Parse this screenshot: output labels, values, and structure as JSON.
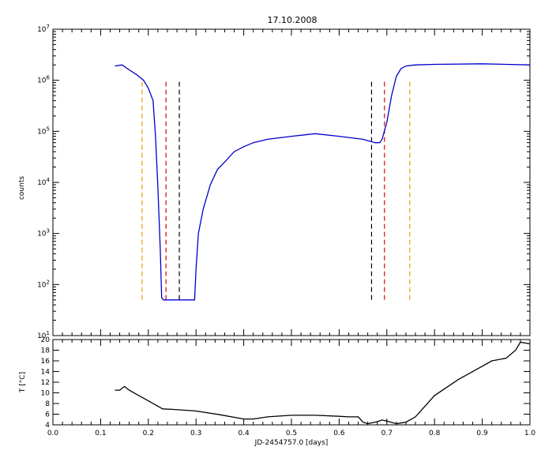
{
  "figure": {
    "title": "17.10.2008"
  },
  "chart_data": [
    {
      "type": "line",
      "title": "17.10.2008",
      "xlabel": "",
      "ylabel": "counts",
      "yscale": "log",
      "xlim": [
        0.0,
        1.0
      ],
      "ylim": [
        10,
        10000000
      ],
      "grid": false,
      "y_ticks": [
        {
          "value": 10,
          "base": "10",
          "exp": "1"
        },
        {
          "value": 100,
          "base": "10",
          "exp": "2"
        },
        {
          "value": 1000,
          "base": "10",
          "exp": "3"
        },
        {
          "value": 10000,
          "base": "10",
          "exp": "4"
        },
        {
          "value": 100000,
          "base": "10",
          "exp": "5"
        },
        {
          "value": 1000000,
          "base": "10",
          "exp": "6"
        },
        {
          "value": 10000000,
          "base": "10",
          "exp": "7"
        }
      ],
      "series": [
        {
          "color": "#0000cc",
          "x": [
            0.13,
            0.145,
            0.16,
            0.175,
            0.19,
            0.2,
            0.21,
            0.215,
            0.22,
            0.225,
            0.228,
            0.232,
            0.24,
            0.26,
            0.28,
            0.297,
            0.3,
            0.305,
            0.315,
            0.33,
            0.345,
            0.36,
            0.38,
            0.4,
            0.42,
            0.45,
            0.5,
            0.55,
            0.6,
            0.65,
            0.675,
            0.68,
            0.685,
            0.69,
            0.7,
            0.71,
            0.72,
            0.73,
            0.74,
            0.76,
            0.8,
            0.9,
            1.0
          ],
          "y": [
            1900000,
            2000000,
            1600000,
            1300000,
            1000000,
            700000,
            400000,
            80000,
            8000,
            500,
            55,
            50,
            50,
            50,
            50,
            50,
            200,
            1000,
            3000,
            9000,
            18000,
            25000,
            40000,
            50000,
            60000,
            70000,
            80000,
            90000,
            80000,
            70000,
            60000,
            60000,
            60000,
            70000,
            150000,
            500000,
            1200000,
            1700000,
            1900000,
            2000000,
            2050000,
            2100000,
            2000000
          ]
        }
      ],
      "vertical_lines": [
        {
          "x": 0.187,
          "color": "#e0a000"
        },
        {
          "x": 0.237,
          "color": "#dd0000"
        },
        {
          "x": 0.265,
          "color": "#000000"
        },
        {
          "x": 0.668,
          "color": "#000000"
        },
        {
          "x": 0.695,
          "color": "#dd0000"
        },
        {
          "x": 0.748,
          "color": "#e0a000"
        }
      ]
    },
    {
      "type": "line",
      "title": "",
      "xlabel": "JD-2454757.0 [days]",
      "ylabel": "T [°C]",
      "xlim": [
        0.0,
        1.0
      ],
      "ylim": [
        4,
        20
      ],
      "grid": false,
      "x_ticks": [
        "0.0",
        "0.1",
        "0.2",
        "0.3",
        "0.4",
        "0.5",
        "0.6",
        "0.7",
        "0.8",
        "0.9",
        "1.0"
      ],
      "y_ticks": [
        "4",
        "6",
        "8",
        "10",
        "12",
        "14",
        "16",
        "18",
        "20"
      ],
      "series": [
        {
          "color": "#000000",
          "x": [
            0.13,
            0.14,
            0.15,
            0.16,
            0.18,
            0.2,
            0.22,
            0.23,
            0.25,
            0.3,
            0.35,
            0.4,
            0.42,
            0.45,
            0.5,
            0.55,
            0.6,
            0.62,
            0.64,
            0.65,
            0.66,
            0.68,
            0.69,
            0.7,
            0.72,
            0.74,
            0.76,
            0.78,
            0.8,
            0.85,
            0.9,
            0.92,
            0.95,
            0.97,
            0.98,
            1.0
          ],
          "y": [
            10.5,
            10.5,
            11.2,
            10.5,
            9.5,
            8.5,
            7.5,
            7.0,
            6.9,
            6.6,
            5.9,
            5.1,
            5.1,
            5.5,
            5.8,
            5.8,
            5.6,
            5.5,
            5.5,
            4.5,
            4.2,
            4.6,
            4.9,
            4.7,
            4.2,
            4.5,
            5.5,
            7.5,
            9.5,
            12.5,
            15.0,
            16.0,
            16.5,
            18.0,
            19.5,
            19.2
          ]
        }
      ]
    }
  ]
}
